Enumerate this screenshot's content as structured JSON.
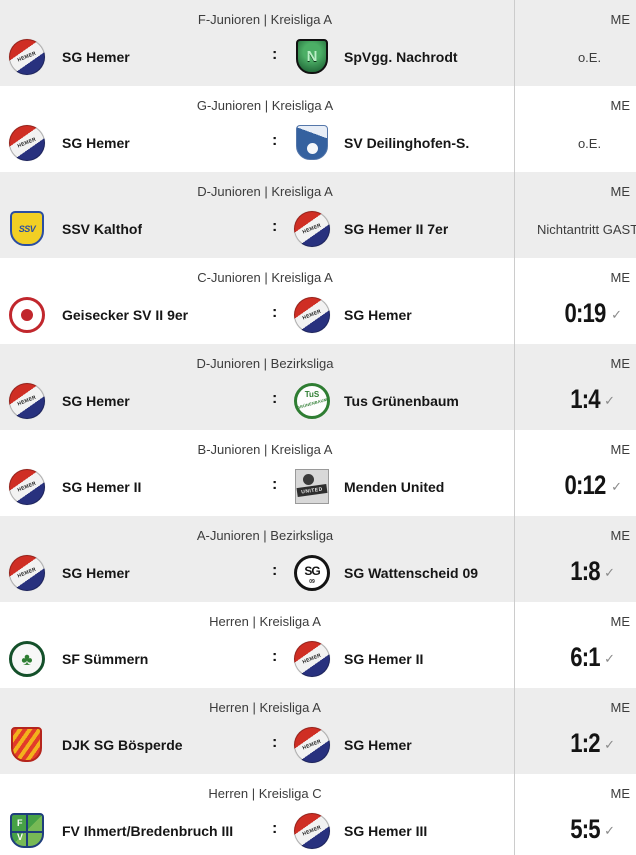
{
  "palette": {
    "row_bg": "#ffffff",
    "row_alt_bg": "#ededed",
    "divider": "#cccccc",
    "header_text": "#3c3c3c",
    "team_text": "#161616",
    "score_text": "#141414",
    "check_icon_color": "#8a8a8a"
  },
  "labels": {
    "me": "ME",
    "separator": ":",
    "check_icon": "✓"
  },
  "rows": [
    {
      "league": "F-Junioren | Kreisliga A",
      "home": "SG Hemer",
      "home_logo": "sg-hemer",
      "away": "SpVgg. Nachrodt",
      "away_logo": "spvgg-nachrodt",
      "result": "o.E.",
      "result_type": "text"
    },
    {
      "league": "G-Junioren | Kreisliga A",
      "home": "SG Hemer",
      "home_logo": "sg-hemer",
      "away": "SV Deilinghofen-S.",
      "away_logo": "sv-deilinghofen",
      "result": "o.E.",
      "result_type": "text"
    },
    {
      "league": "D-Junioren | Kreisliga A",
      "home": "SSV Kalthof",
      "home_logo": "ssv-kalthof",
      "away": "SG Hemer II 7er",
      "away_logo": "sg-hemer",
      "result": "Nichtantritt GAST",
      "result_type": "text-long"
    },
    {
      "league": "C-Junioren | Kreisliga A",
      "home": "Geisecker SV II 9er",
      "home_logo": "geisecker-sv",
      "away": "SG Hemer",
      "away_logo": "sg-hemer",
      "result": "0:19",
      "result_type": "score"
    },
    {
      "league": "D-Junioren | Bezirksliga",
      "home": "SG Hemer",
      "home_logo": "sg-hemer",
      "away": "Tus Grünenbaum",
      "away_logo": "tus-gruenenbaum",
      "result": "1:4",
      "result_type": "score"
    },
    {
      "league": "B-Junioren | Kreisliga A",
      "home": "SG Hemer II",
      "home_logo": "sg-hemer",
      "away": "Menden United",
      "away_logo": "menden-united",
      "result": "0:12",
      "result_type": "score"
    },
    {
      "league": "A-Junioren | Bezirksliga",
      "home": "SG Hemer",
      "home_logo": "sg-hemer",
      "away": "SG Wattenscheid 09",
      "away_logo": "sg-wattenscheid-09",
      "result": "1:8",
      "result_type": "score"
    },
    {
      "league": "Herren | Kreisliga A",
      "home": "SF Sümmern",
      "home_logo": "sf-suemmern",
      "away": "SG Hemer II",
      "away_logo": "sg-hemer",
      "result": "6:1",
      "result_type": "score"
    },
    {
      "league": "Herren | Kreisliga A",
      "home": "DJK SG Bösperde",
      "home_logo": "djk-sg-boesperde",
      "away": "SG Hemer",
      "away_logo": "sg-hemer",
      "result": "1:2",
      "result_type": "score"
    },
    {
      "league": "Herren | Kreisliga C",
      "home": "FV Ihmert/Bredenbruch III",
      "home_logo": "fv-ihmert-bredenbruch",
      "away": "SG Hemer III",
      "away_logo": "sg-hemer",
      "result": "5:5",
      "result_type": "score"
    }
  ]
}
